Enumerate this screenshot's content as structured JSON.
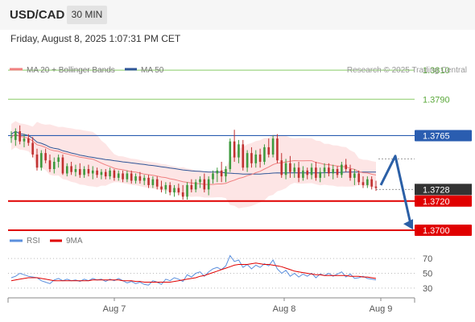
{
  "header": {
    "pair": "USD/CAD",
    "timeframe": "30 MIN",
    "datetime": "Friday, August 8, 2025 1:07:31 PM CET"
  },
  "legend": {
    "ma20_label": "MA 20 + Bollinger Bands",
    "ma50_label": "MA 50",
    "ma20_color": "#f08080",
    "ma50_color": "#2f5597"
  },
  "credit": "Research © 2025 Trading Central",
  "rsi_legend": {
    "rsi_label": "RSI",
    "ma_label": "9MA",
    "rsi_color": "#5b8fdd",
    "ma_color": "#e00000"
  },
  "chart_data": {
    "type": "candlestick",
    "price_range": [
      1.3695,
      1.3825
    ],
    "x_ticks": [
      "Aug 7",
      "Aug 8",
      "Aug 9"
    ],
    "levels": [
      {
        "value": "1.3810",
        "kind": "resistance",
        "color": "#88cc66"
      },
      {
        "value": "1.3790",
        "kind": "resistance",
        "color": "#88cc66"
      },
      {
        "value": "1.3765",
        "kind": "pivot",
        "color": "#2a5db0"
      },
      {
        "value": "1.3720",
        "kind": "support",
        "color": "#e00000"
      },
      {
        "value": "1.3700",
        "kind": "support",
        "color": "#e00000"
      }
    ],
    "last_price": "1.3728",
    "candles": [
      [
        1.3764,
        1.3768,
        1.376,
        1.3764
      ],
      [
        1.3762,
        1.377,
        1.3758,
        1.3768
      ],
      [
        1.3768,
        1.3772,
        1.3759,
        1.3761
      ],
      [
        1.3761,
        1.3766,
        1.3757,
        1.3763
      ],
      [
        1.3763,
        1.3766,
        1.3758,
        1.376
      ],
      [
        1.376,
        1.3764,
        1.375,
        1.3752
      ],
      [
        1.3752,
        1.3756,
        1.3741,
        1.3743
      ],
      [
        1.3743,
        1.3755,
        1.3741,
        1.3753
      ],
      [
        1.3753,
        1.3756,
        1.3746,
        1.3748
      ],
      [
        1.3748,
        1.3752,
        1.374,
        1.3742
      ],
      [
        1.3742,
        1.375,
        1.3739,
        1.3747
      ],
      [
        1.3747,
        1.3752,
        1.3743,
        1.375
      ],
      [
        1.375,
        1.3752,
        1.3738,
        1.3739
      ],
      [
        1.3739,
        1.3746,
        1.3737,
        1.3744
      ],
      [
        1.3744,
        1.3747,
        1.3738,
        1.374
      ],
      [
        1.374,
        1.3745,
        1.3737,
        1.3742
      ],
      [
        1.3742,
        1.3746,
        1.3736,
        1.3738
      ],
      [
        1.3738,
        1.3744,
        1.3736,
        1.3742
      ],
      [
        1.3742,
        1.3745,
        1.3737,
        1.3739
      ],
      [
        1.3739,
        1.3744,
        1.3735,
        1.3741
      ],
      [
        1.3741,
        1.3743,
        1.3736,
        1.3738
      ],
      [
        1.3738,
        1.3742,
        1.3735,
        1.374
      ],
      [
        1.374,
        1.3742,
        1.3735,
        1.3737
      ],
      [
        1.3737,
        1.3743,
        1.3735,
        1.3741
      ],
      [
        1.3741,
        1.3742,
        1.3734,
        1.3736
      ],
      [
        1.3736,
        1.3741,
        1.3734,
        1.3739
      ],
      [
        1.3739,
        1.3741,
        1.3733,
        1.3735
      ],
      [
        1.3735,
        1.3741,
        1.3733,
        1.3739
      ],
      [
        1.3739,
        1.3741,
        1.3732,
        1.3734
      ],
      [
        1.3734,
        1.3739,
        1.3732,
        1.3737
      ],
      [
        1.3737,
        1.374,
        1.3732,
        1.3734
      ],
      [
        1.3734,
        1.3738,
        1.3731,
        1.3736
      ],
      [
        1.3736,
        1.3738,
        1.3729,
        1.3731
      ],
      [
        1.3731,
        1.3737,
        1.3729,
        1.3735
      ],
      [
        1.3735,
        1.3737,
        1.3728,
        1.373
      ],
      [
        1.373,
        1.3734,
        1.3726,
        1.3728
      ],
      [
        1.3728,
        1.3733,
        1.3725,
        1.3731
      ],
      [
        1.3731,
        1.3733,
        1.3724,
        1.3726
      ],
      [
        1.3726,
        1.3731,
        1.3723,
        1.3729
      ],
      [
        1.3729,
        1.3732,
        1.3724,
        1.3726
      ],
      [
        1.3726,
        1.3731,
        1.3721,
        1.3723
      ],
      [
        1.3723,
        1.3733,
        1.3721,
        1.3731
      ],
      [
        1.3731,
        1.3735,
        1.3726,
        1.3728
      ],
      [
        1.3728,
        1.3735,
        1.3726,
        1.3733
      ],
      [
        1.3733,
        1.3737,
        1.3729,
        1.3735
      ],
      [
        1.3735,
        1.3739,
        1.3726,
        1.3728
      ],
      [
        1.3728,
        1.3737,
        1.3724,
        1.3735
      ],
      [
        1.3735,
        1.3741,
        1.3732,
        1.3739
      ],
      [
        1.3739,
        1.3743,
        1.3733,
        1.3741
      ],
      [
        1.3741,
        1.3747,
        1.3733,
        1.3737
      ],
      [
        1.3737,
        1.3744,
        1.3733,
        1.3742
      ],
      [
        1.3742,
        1.3763,
        1.374,
        1.3761
      ],
      [
        1.3761,
        1.3769,
        1.3747,
        1.375
      ],
      [
        1.375,
        1.3762,
        1.3746,
        1.3759
      ],
      [
        1.3759,
        1.3762,
        1.3741,
        1.3743
      ],
      [
        1.3743,
        1.3755,
        1.374,
        1.3753
      ],
      [
        1.3753,
        1.3757,
        1.3743,
        1.3746
      ],
      [
        1.3746,
        1.3755,
        1.3743,
        1.3752
      ],
      [
        1.3752,
        1.3756,
        1.3743,
        1.3747
      ],
      [
        1.3747,
        1.3759,
        1.3745,
        1.3757
      ],
      [
        1.3757,
        1.3763,
        1.375,
        1.3752
      ],
      [
        1.3752,
        1.3765,
        1.375,
        1.3763
      ],
      [
        1.3763,
        1.3766,
        1.3746,
        1.3748
      ],
      [
        1.3748,
        1.3753,
        1.3736,
        1.3738
      ],
      [
        1.3738,
        1.3749,
        1.3735,
        1.3746
      ],
      [
        1.3746,
        1.3751,
        1.3736,
        1.374
      ],
      [
        1.374,
        1.3746,
        1.3736,
        1.3743
      ],
      [
        1.3743,
        1.3747,
        1.3733,
        1.3736
      ],
      [
        1.3736,
        1.3744,
        1.3734,
        1.3741
      ],
      [
        1.3741,
        1.3743,
        1.3735,
        1.3738
      ],
      [
        1.3738,
        1.3746,
        1.3735,
        1.3743
      ],
      [
        1.3743,
        1.3747,
        1.3734,
        1.3736
      ],
      [
        1.3736,
        1.3743,
        1.3733,
        1.374
      ],
      [
        1.374,
        1.3746,
        1.3736,
        1.3743
      ],
      [
        1.3743,
        1.3746,
        1.3737,
        1.3739
      ],
      [
        1.3739,
        1.3745,
        1.3735,
        1.3742
      ],
      [
        1.3742,
        1.3744,
        1.3736,
        1.3738
      ],
      [
        1.3738,
        1.3747,
        1.3736,
        1.3745
      ],
      [
        1.3745,
        1.3749,
        1.374,
        1.3742
      ],
      [
        1.3742,
        1.3745,
        1.3734,
        1.3736
      ],
      [
        1.3736,
        1.3742,
        1.3731,
        1.3739
      ],
      [
        1.3739,
        1.3741,
        1.3731,
        1.3733
      ],
      [
        1.3733,
        1.3737,
        1.3729,
        1.3731
      ],
      [
        1.3731,
        1.3737,
        1.3729,
        1.3735
      ],
      [
        1.3735,
        1.3737,
        1.3728,
        1.373
      ],
      [
        1.373,
        1.3734,
        1.3727,
        1.3729
      ]
    ],
    "rsi_axis_labels": [
      "70",
      "50",
      "30"
    ],
    "rsi_range": [
      20,
      80
    ],
    "rsi": [
      44,
      46,
      50,
      48,
      46,
      45,
      44,
      40,
      38,
      36,
      41,
      43,
      40,
      42,
      40,
      41,
      39,
      42,
      40,
      43,
      41,
      42,
      39,
      42,
      40,
      43,
      40,
      37,
      39,
      36,
      38,
      35,
      34,
      40,
      38,
      35,
      42,
      40,
      44,
      42,
      39,
      48,
      45,
      50,
      52,
      46,
      52,
      56,
      58,
      55,
      60,
      74,
      66,
      68,
      58,
      62,
      56,
      61,
      58,
      63,
      60,
      68,
      56,
      50,
      54,
      46,
      50,
      45,
      49,
      46,
      50,
      44,
      49,
      47,
      50,
      46,
      49,
      52,
      45,
      49,
      43,
      44,
      46,
      43,
      42,
      41
    ],
    "rsi_ma": [
      40,
      41,
      42,
      43,
      44,
      44,
      44,
      43,
      42,
      41,
      40,
      40,
      40,
      40,
      40,
      40,
      40,
      40,
      40,
      41,
      41,
      41,
      41,
      41,
      41,
      41,
      40,
      40,
      40,
      39,
      39,
      38,
      38,
      38,
      38,
      38,
      38,
      38,
      39,
      40,
      41,
      42,
      43,
      44,
      46,
      47,
      49,
      51,
      53,
      55,
      57,
      59,
      61,
      62,
      62,
      62,
      63,
      64,
      63,
      62,
      62,
      61,
      60,
      59,
      57,
      55,
      53,
      52,
      51,
      50,
      49,
      48,
      48,
      47,
      47,
      47,
      47,
      47,
      47,
      46,
      46,
      46,
      45,
      45,
      44,
      43
    ]
  }
}
